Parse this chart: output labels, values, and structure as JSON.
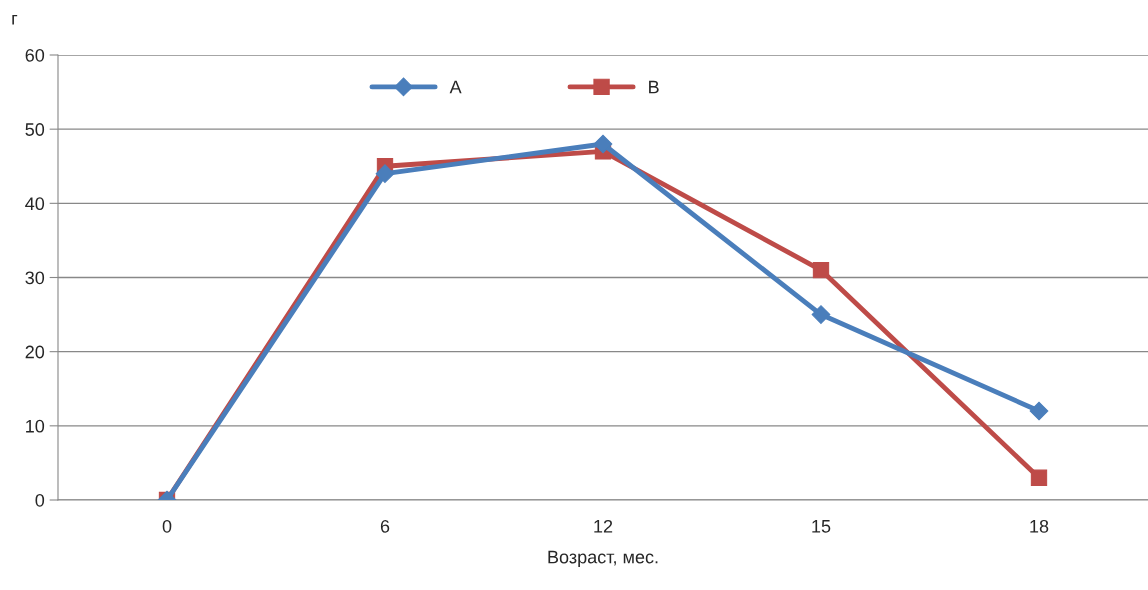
{
  "chart_data": {
    "type": "line",
    "xlabel": "Возраст, мес.",
    "ylabel": "г",
    "categories": [
      "0",
      "6",
      "12",
      "15",
      "18"
    ],
    "series": [
      {
        "name": "A",
        "color": "#4a7ebb",
        "marker": "diamond",
        "values": [
          0,
          44,
          48,
          25,
          12
        ]
      },
      {
        "name": "B",
        "color": "#be4b48",
        "marker": "square",
        "values": [
          0,
          45,
          47,
          31,
          3
        ]
      }
    ],
    "ylim": [
      0,
      60
    ],
    "yticks": [
      0,
      10,
      20,
      30,
      40,
      50,
      60
    ],
    "grid": "y",
    "legend": "top",
    "line_style": "solid"
  }
}
